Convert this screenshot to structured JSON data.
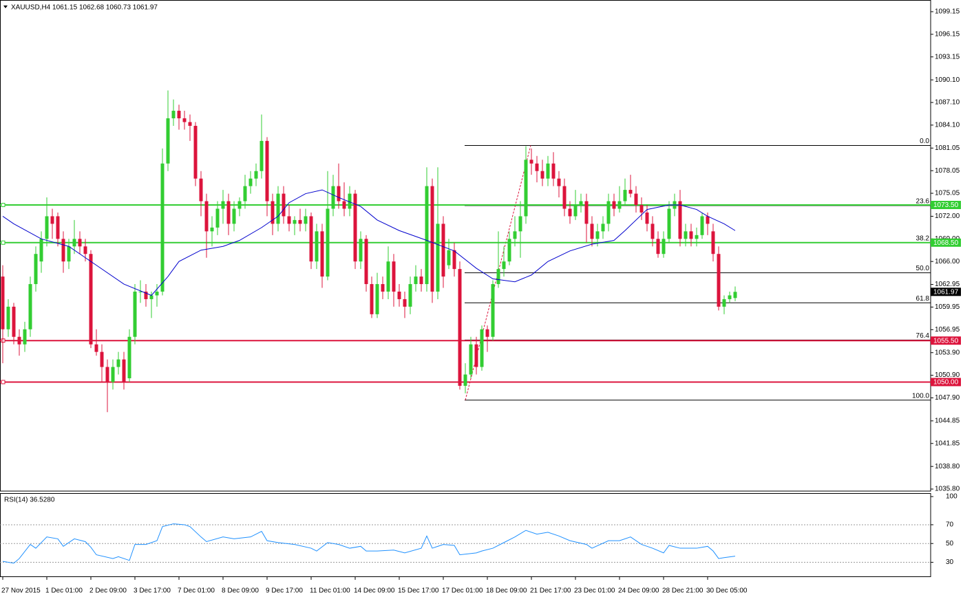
{
  "chart_data": [
    {
      "type": "candlestick",
      "title": "XAUUSD,H4  1061.15 1062.68 1060.73 1061.97",
      "categories": [
        "27 Nov 2015",
        null,
        null,
        null,
        null,
        null,
        null,
        null,
        "1 Dec 01:00",
        null,
        null,
        null,
        null,
        null,
        null,
        null,
        "2 Dec 09:00",
        null,
        null,
        null,
        null,
        null,
        null,
        null,
        "3 Dec 17:00",
        null,
        null,
        null,
        null,
        null,
        null,
        null,
        "7 Dec 01:00",
        null,
        null,
        null,
        null,
        null,
        null,
        null,
        "8 Dec 09:00",
        null,
        null,
        null,
        null,
        null,
        null,
        null,
        "9 Dec 17:00",
        null,
        null,
        null,
        null,
        null,
        null,
        null,
        "11 Dec 01:00",
        null,
        null,
        null,
        null,
        null,
        null,
        null,
        "14 Dec 09:00",
        null,
        null,
        null,
        null,
        null,
        null,
        null,
        "15 Dec 17:00",
        null,
        null,
        null,
        null,
        null,
        null,
        null,
        "17 Dec 01:00",
        null,
        null,
        null,
        null,
        null,
        null,
        null,
        "18 Dec 09:00",
        null,
        null,
        null,
        null,
        null,
        null,
        null,
        "21 Dec 17:00",
        null,
        null,
        null,
        null,
        null,
        null,
        null,
        "23 Dec 01:00",
        null,
        null,
        null,
        null,
        null,
        null,
        null,
        "24 Dec 09:00",
        null,
        null,
        null,
        null,
        null,
        null,
        null,
        "28 Dec 21:00",
        null,
        null,
        null,
        null,
        null,
        null,
        null,
        "30 Dec 05:00",
        null,
        null,
        null,
        null,
        null
      ],
      "ohlc": [
        [
          1064,
          1065.5,
          1052.5,
          1057
        ],
        [
          1057,
          1061,
          1056,
          1060
        ],
        [
          1060,
          1060.5,
          1055,
          1056
        ],
        [
          1056,
          1057,
          1053.5,
          1055
        ],
        [
          1055,
          1058,
          1054,
          1057
        ],
        [
          1057,
          1064,
          1056,
          1063
        ],
        [
          1063,
          1068,
          1062,
          1067
        ],
        [
          1066,
          1070,
          1064.5,
          1069
        ],
        [
          1069,
          1074.5,
          1068,
          1072
        ],
        [
          1072,
          1073,
          1069,
          1071
        ],
        [
          1072,
          1072.5,
          1068,
          1069
        ],
        [
          1069,
          1070,
          1064.5,
          1066
        ],
        [
          1066,
          1069,
          1065,
          1068
        ],
        [
          1068,
          1071.5,
          1067,
          1069
        ],
        [
          1069,
          1070,
          1067,
          1068
        ],
        [
          1068,
          1069,
          1066,
          1067
        ],
        [
          1067,
          1067.5,
          1054.5,
          1055
        ],
        [
          1055,
          1057,
          1053.5,
          1054
        ],
        [
          1054,
          1055,
          1050,
          1052
        ],
        [
          1052,
          1053,
          1046,
          1050
        ],
        [
          1050,
          1053,
          1049,
          1052
        ],
        [
          1052,
          1054,
          1051,
          1053
        ],
        [
          1053,
          1054,
          1049,
          1050
        ],
        [
          1050.5,
          1057,
          1050,
          1056
        ],
        [
          1056,
          1063,
          1055,
          1062
        ],
        [
          1062,
          1063.5,
          1060.5,
          1062
        ],
        [
          1062,
          1063,
          1060,
          1061
        ],
        [
          1061,
          1062,
          1058.5,
          1061.5
        ],
        [
          1061.5,
          1063,
          1060,
          1062
        ],
        [
          1062,
          1081,
          1061.5,
          1079
        ],
        [
          1079,
          1088.7,
          1078,
          1085
        ],
        [
          1085,
          1087.5,
          1084,
          1086
        ],
        [
          1086,
          1086.8,
          1083.5,
          1085
        ],
        [
          1085,
          1086,
          1083.5,
          1084.5
        ],
        [
          1084.5,
          1085.5,
          1082,
          1084
        ],
        [
          1084,
          1084.5,
          1076,
          1077
        ],
        [
          1077,
          1078,
          1072,
          1074
        ],
        [
          1074,
          1075,
          1066.5,
          1070
        ],
        [
          1070,
          1072,
          1068,
          1070.5
        ],
        [
          1070.5,
          1074,
          1069.5,
          1073
        ],
        [
          1073,
          1075.5,
          1071,
          1074
        ],
        [
          1074,
          1075,
          1069.5,
          1071
        ],
        [
          1071,
          1074,
          1070,
          1073
        ],
        [
          1073,
          1074.5,
          1072,
          1074
        ],
        [
          1074,
          1077.5,
          1073,
          1076
        ],
        [
          1076,
          1078,
          1075,
          1077
        ],
        [
          1077,
          1079,
          1076,
          1078
        ],
        [
          1078,
          1085.5,
          1077,
          1082
        ],
        [
          1082,
          1082.5,
          1072,
          1074
        ],
        [
          1074,
          1075,
          1069.5,
          1071
        ],
        [
          1071,
          1076,
          1070,
          1075
        ],
        [
          1075,
          1076,
          1071,
          1072
        ],
        [
          1072,
          1073.5,
          1070,
          1071
        ],
        [
          1071,
          1072,
          1069.5,
          1071.5
        ],
        [
          1071.5,
          1073,
          1070,
          1071
        ],
        [
          1071,
          1073,
          1070,
          1072
        ],
        [
          1072,
          1072.5,
          1065,
          1066
        ],
        [
          1066,
          1071,
          1065,
          1070
        ],
        [
          1070,
          1071,
          1062.5,
          1064
        ],
        [
          1064,
          1078,
          1063.5,
          1073
        ],
        [
          1073,
          1077.5,
          1072,
          1076
        ],
        [
          1076,
          1079,
          1073,
          1074
        ],
        [
          1074,
          1076.5,
          1072,
          1073
        ],
        [
          1073,
          1076,
          1072,
          1075
        ],
        [
          1075,
          1075.5,
          1065,
          1066
        ],
        [
          1066,
          1070,
          1065,
          1069
        ],
        [
          1069,
          1069.5,
          1062,
          1063
        ],
        [
          1063,
          1064,
          1058.5,
          1059
        ],
        [
          1059,
          1064.5,
          1058.5,
          1063
        ],
        [
          1063,
          1064,
          1061,
          1062
        ],
        [
          1062,
          1068,
          1061,
          1066
        ],
        [
          1066,
          1067,
          1060,
          1062
        ],
        [
          1062,
          1063,
          1060,
          1061
        ],
        [
          1061,
          1062,
          1058.5,
          1060
        ],
        [
          1060,
          1064,
          1059,
          1063
        ],
        [
          1063,
          1065.5,
          1062,
          1064
        ],
        [
          1064,
          1065,
          1062,
          1063
        ],
        [
          1063,
          1078.5,
          1062,
          1076
        ],
        [
          1076,
          1077,
          1060.5,
          1062
        ],
        [
          1062,
          1078.5,
          1061,
          1071
        ],
        [
          1071,
          1072,
          1062.5,
          1064
        ],
        [
          1065.5,
          1069,
          1065,
          1067.5
        ],
        [
          1067.5,
          1068.5,
          1064,
          1065
        ],
        [
          1065,
          1066,
          1049,
          1049.5
        ],
        [
          1049.5,
          1052.5,
          1048.5,
          1051
        ],
        [
          1051,
          1056,
          1050.5,
          1055
        ],
        [
          1055,
          1056,
          1051,
          1052
        ],
        [
          1052,
          1057.5,
          1051.5,
          1057
        ],
        [
          1057,
          1057.5,
          1054,
          1056
        ],
        [
          1056,
          1063.5,
          1055.5,
          1063
        ],
        [
          1063,
          1070,
          1062.5,
          1065
        ],
        [
          1065,
          1068,
          1064,
          1066
        ],
        [
          1066,
          1070,
          1065.5,
          1069
        ],
        [
          1069,
          1072,
          1068,
          1070
        ],
        [
          1070,
          1074,
          1066.5,
          1072
        ],
        [
          1072,
          1081.3,
          1071,
          1079.5
        ],
        [
          1079.5,
          1081,
          1077.5,
          1079
        ],
        [
          1079,
          1080,
          1076.5,
          1078
        ],
        [
          1078,
          1079.5,
          1076,
          1077
        ],
        [
          1077,
          1080,
          1076,
          1079
        ],
        [
          1079,
          1080.5,
          1076,
          1077
        ],
        [
          1077,
          1078,
          1074.5,
          1076
        ],
        [
          1076,
          1077,
          1072,
          1073
        ],
        [
          1073,
          1074,
          1071,
          1072
        ],
        [
          1072,
          1075.5,
          1071.5,
          1073.5
        ],
        [
          1073.5,
          1075,
          1072.5,
          1074
        ],
        [
          1074,
          1075,
          1068.5,
          1071
        ],
        [
          1071,
          1072,
          1068,
          1069
        ],
        [
          1069,
          1071,
          1068,
          1070
        ],
        [
          1070,
          1072,
          1069,
          1071
        ],
        [
          1071,
          1075,
          1070,
          1074
        ],
        [
          1074,
          1075,
          1072,
          1073
        ],
        [
          1073,
          1076,
          1072.5,
          1074
        ],
        [
          1074,
          1077,
          1073.5,
          1075.5
        ],
        [
          1075.5,
          1077.5,
          1074.5,
          1075
        ],
        [
          1075,
          1076,
          1072.5,
          1073.5
        ],
        [
          1073.5,
          1074.5,
          1071.5,
          1072.5
        ],
        [
          1072.5,
          1073.5,
          1070,
          1071
        ],
        [
          1071,
          1072,
          1068,
          1069
        ],
        [
          1069,
          1070,
          1066.5,
          1067
        ],
        [
          1067,
          1070,
          1066.5,
          1069
        ],
        [
          1069,
          1074,
          1068.5,
          1073
        ],
        [
          1073,
          1075,
          1072,
          1074
        ],
        [
          1074,
          1075.5,
          1068,
          1069
        ],
        [
          1069,
          1071,
          1068,
          1070
        ],
        [
          1070,
          1071,
          1068,
          1069
        ],
        [
          1069,
          1070.5,
          1068,
          1069.5
        ],
        [
          1069.5,
          1072.5,
          1069,
          1072
        ],
        [
          1072,
          1072.5,
          1069.5,
          1071
        ],
        [
          1070,
          1071,
          1066,
          1067
        ],
        [
          1067,
          1068,
          1059.5,
          1060
        ],
        [
          1060,
          1061.5,
          1059,
          1061
        ],
        [
          1061,
          1062,
          1060.5,
          1061.5
        ],
        [
          1061.15,
          1062.68,
          1060.73,
          1061.97
        ]
      ],
      "up_color": "#32cd32",
      "down_color": "#dc143c",
      "ma_color": "#0000cd",
      "ma_x": [
        0,
        2,
        7,
        12,
        17,
        22,
        27,
        30,
        32,
        36,
        40,
        43,
        47,
        50,
        52,
        55,
        58,
        61,
        65,
        68,
        72,
        77,
        82,
        86,
        89,
        93,
        96,
        99,
        103,
        107,
        111,
        113,
        117,
        121,
        123,
        126,
        128,
        131,
        133
      ],
      "ma_values": [
        1072,
        1071,
        1069,
        1068,
        1065.5,
        1063,
        1061.5,
        1064,
        1066,
        1067.5,
        1068,
        1068.8,
        1070.5,
        1072,
        1073.8,
        1075,
        1075.5,
        1074.5,
        1073.3,
        1071.5,
        1070.1,
        1068.8,
        1067.4,
        1065.1,
        1063.7,
        1063.3,
        1064.2,
        1066,
        1067.4,
        1068.3,
        1068.8,
        1070.1,
        1072.9,
        1073.5,
        1073.5,
        1072.9,
        1072,
        1071,
        1070.1
      ],
      "levels": [
        {
          "value": 1073.5,
          "label": "1073.50",
          "color": "#32cd32"
        },
        {
          "value": 1068.5,
          "label": "1068.50",
          "color": "#32cd32"
        },
        {
          "value": 1055.5,
          "label": "1055.50",
          "color": "#dc143c"
        },
        {
          "value": 1050,
          "label": "1050.00",
          "color": "#dc143c"
        }
      ],
      "last_price": 1061.97,
      "fib": {
        "high": 1081.4,
        "low": 1047.6,
        "start": 84,
        "end": 95,
        "color": "#000000",
        "trend_color": "#dc143c",
        "levels": [
          {
            "value": 0,
            "label": "0.0"
          },
          23.6,
          38.2,
          {
            "value": 50,
            "label": "50.0"
          },
          61.8,
          76.4,
          {
            "value": 100,
            "label": "100.0"
          }
        ]
      },
      "ylim": [
        1035.53,
        1100.7
      ],
      "yticks": [
        1099.15,
        1096.15,
        1093.15,
        {
          "value": 1090.1,
          "label": "1090.10"
        },
        {
          "value": 1087.1,
          "label": "1087.10"
        },
        {
          "value": 1084.1,
          "label": "1084.10"
        },
        1081.05,
        1078.05,
        1075.05,
        {
          "value": 1072,
          "label": "1072.00"
        },
        {
          "value": 1069,
          "label": "1069.00"
        },
        {
          "value": 1066,
          "label": "1066.00"
        },
        1062.95,
        1059.95,
        1056.95,
        {
          "value": 1053.9,
          "label": "1053.90"
        },
        {
          "value": 1050.9,
          "label": "1050.90"
        },
        {
          "value": 1047.9,
          "label": "1047.90"
        },
        1044.85,
        1041.85,
        {
          "value": 1038.8,
          "label": "1038.80"
        },
        {
          "value": 1035.8,
          "label": "1035.80"
        }
      ]
    },
    {
      "type": "line",
      "title": "RSI(14) 36.5280",
      "color": "#1e90ff",
      "x": [
        0,
        2,
        3,
        5,
        6,
        8,
        10,
        11,
        13,
        15,
        16,
        17,
        20,
        21,
        23,
        24,
        26,
        28,
        29,
        31,
        33,
        34,
        36,
        37,
        40,
        42,
        45,
        47,
        48,
        50,
        53,
        56,
        57,
        59,
        61,
        63,
        65,
        66,
        68,
        71,
        73,
        76,
        77,
        78,
        80,
        82,
        83,
        86,
        87,
        89,
        91,
        93,
        95,
        97,
        99,
        101,
        103,
        106,
        107,
        110,
        112,
        114,
        116,
        118,
        120,
        121,
        123,
        124,
        126,
        128,
        129,
        130,
        131,
        133
      ],
      "values": [
        31,
        29,
        34,
        49,
        45,
        57,
        55,
        47,
        55,
        52,
        46,
        38,
        34,
        36,
        32,
        49,
        49,
        53,
        68,
        71,
        70,
        68,
        57,
        52,
        57,
        55,
        57,
        63,
        53,
        51,
        49,
        45,
        42,
        51,
        49,
        45,
        47,
        42,
        42,
        43,
        40,
        45,
        58,
        45,
        49,
        48,
        38,
        40,
        42,
        45,
        51,
        57,
        64,
        60,
        62,
        58,
        53,
        49,
        45,
        53,
        53,
        57,
        49,
        45,
        40,
        48,
        45,
        45,
        45,
        47,
        42,
        34,
        35,
        36.528
      ],
      "ylim": [
        15,
        100
      ],
      "yticks": [
        30,
        50,
        70,
        100
      ],
      "grid_levels": [
        30,
        50,
        70
      ]
    }
  ]
}
